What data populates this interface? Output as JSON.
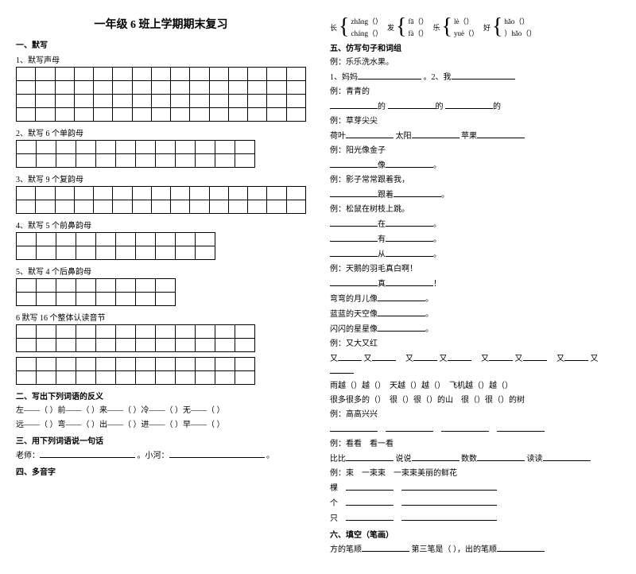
{
  "title": "一年级 6 班上学期期末复习",
  "left": {
    "sec1": {
      "title": "一、默写",
      "sub1": "1、默写声母",
      "sub2": "2、默写 6 个单韵母",
      "sub3": "3、默写 9 个复韵母",
      "sub4": "4、默写 5 个前鼻韵母",
      "sub5": "5、默写 4 个后鼻韵母",
      "sub6": "6 默写 16 个整体认读音节"
    },
    "sec2": {
      "title": "二、写出下列词语的反义",
      "l1a": "左——（",
      "l1b": "）前——（",
      "l1c": "）来——（",
      "l1d": "）冷——（",
      "l1e": "）无——（",
      "l1f": "）",
      "l2a": "远——（",
      "l2b": "）弯——（",
      "l2c": "）出——（",
      "l2d": "）进——（",
      "l2e": "）早——（",
      "l2f": "）"
    },
    "sec3": {
      "title": "三、用下列词语说一句话",
      "l1a": "老师：",
      "l1b": "。小河：",
      "l1c": "。"
    },
    "sec4": {
      "title": "四、多音字"
    }
  },
  "right": {
    "brace": {
      "c1": {
        "label": "长",
        "a": "zhǎng（",
        "b": "cháng（",
        "e": "）"
      },
      "c2": {
        "label": "发",
        "a": "fā（",
        "b": "fà（",
        "e": "）"
      },
      "c3": {
        "label": "乐",
        "a": "lè（",
        "b": "yuè（",
        "e": "）"
      },
      "c4": {
        "label": "好",
        "a": "hǎo（",
        "b": "）hǎo（",
        "e": "）"
      }
    },
    "sec5": {
      "title": "五、仿写句子和词组",
      "l1": "例：乐乐洗水果。",
      "l2a": "1、妈妈",
      "l2b": "。2、我",
      "l3": "例：青青的",
      "l4a": "的",
      "l4b": "的",
      "l4c": "的",
      "l5": "例：草芽尖尖",
      "l6a": "荷叶",
      "l6b": "太阳",
      "l6c": "苹果",
      "l7": "例：阳光像金子",
      "l8": "像",
      "l9": "。",
      "l10": "例：影子常常跟着我，",
      "l11a": "跟着",
      "l11b": "。",
      "l12": "例：松鼠在树枝上跳。",
      "l13a": "在",
      "l13b": "。",
      "l14a": "有",
      "l14b": "。",
      "l15a": "从",
      "l15b": "。",
      "l16": "例：天鹅的羽毛真白啊！",
      "l17": "真",
      "l17b": "！",
      "l18a": "弯弯的月儿像",
      "l18b": "。",
      "l19a": "蓝蓝的天空像",
      "l19b": "。",
      "l20a": "闪闪的星星像",
      "l20b": "。",
      "l21": "例：又大又红",
      "l22a": "又",
      "l22b": "又",
      "l22c": "又",
      "l22d": "又",
      "l22e": "又",
      "l22f": "又",
      "l22g": "又",
      "l22h": "又",
      "l23a": "雨越（",
      "l23b": "）越（",
      "l23c": "）　天越（",
      "l23d": "）越（",
      "l23e": "）　飞机越（",
      "l23f": "）越（",
      "l23g": "）",
      "l24a": "很多很多的（",
      "l24b": "）　很（",
      "l24c": "）很（",
      "l24d": "）的山　很（",
      "l24e": "）很（",
      "l24f": "）的树",
      "l25": "例：高高兴兴",
      "l26": "例：看看　看一看",
      "l27a": "比比",
      "l27b": "说说",
      "l27c": "数数",
      "l27d": "读读",
      "l28": "例：束　一束束　一束束美丽的鲜花",
      "l29": "棵",
      "l30": "个",
      "l31": "只"
    },
    "sec6": {
      "title": "六、填空（笔画）",
      "l1a": "方的笔顺",
      "l1b": "第三笔是（",
      "l1c": "），出的笔顺"
    }
  }
}
